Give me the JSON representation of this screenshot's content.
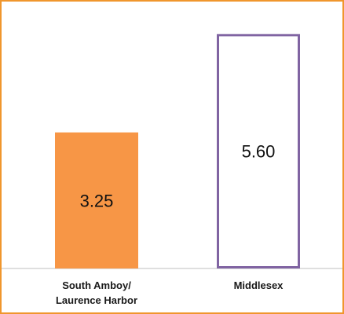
{
  "chart_data": {
    "type": "bar",
    "categories": [
      [
        "South Amboy/",
        "Laurence Harbor"
      ],
      [
        "Middlesex"
      ]
    ],
    "values": [
      3.25,
      5.6
    ],
    "value_labels": [
      "3.25",
      "5.60"
    ],
    "ylim": [
      0,
      5.85
    ],
    "grid": false,
    "legend": "none",
    "bar_styles": [
      {
        "fill": "#f79646",
        "stroke": "#f79646"
      },
      {
        "fill": "#ffffff",
        "stroke": "#8064a2"
      }
    ],
    "frame_color": "#f0962d",
    "axis_color": "#bfbfbf"
  }
}
